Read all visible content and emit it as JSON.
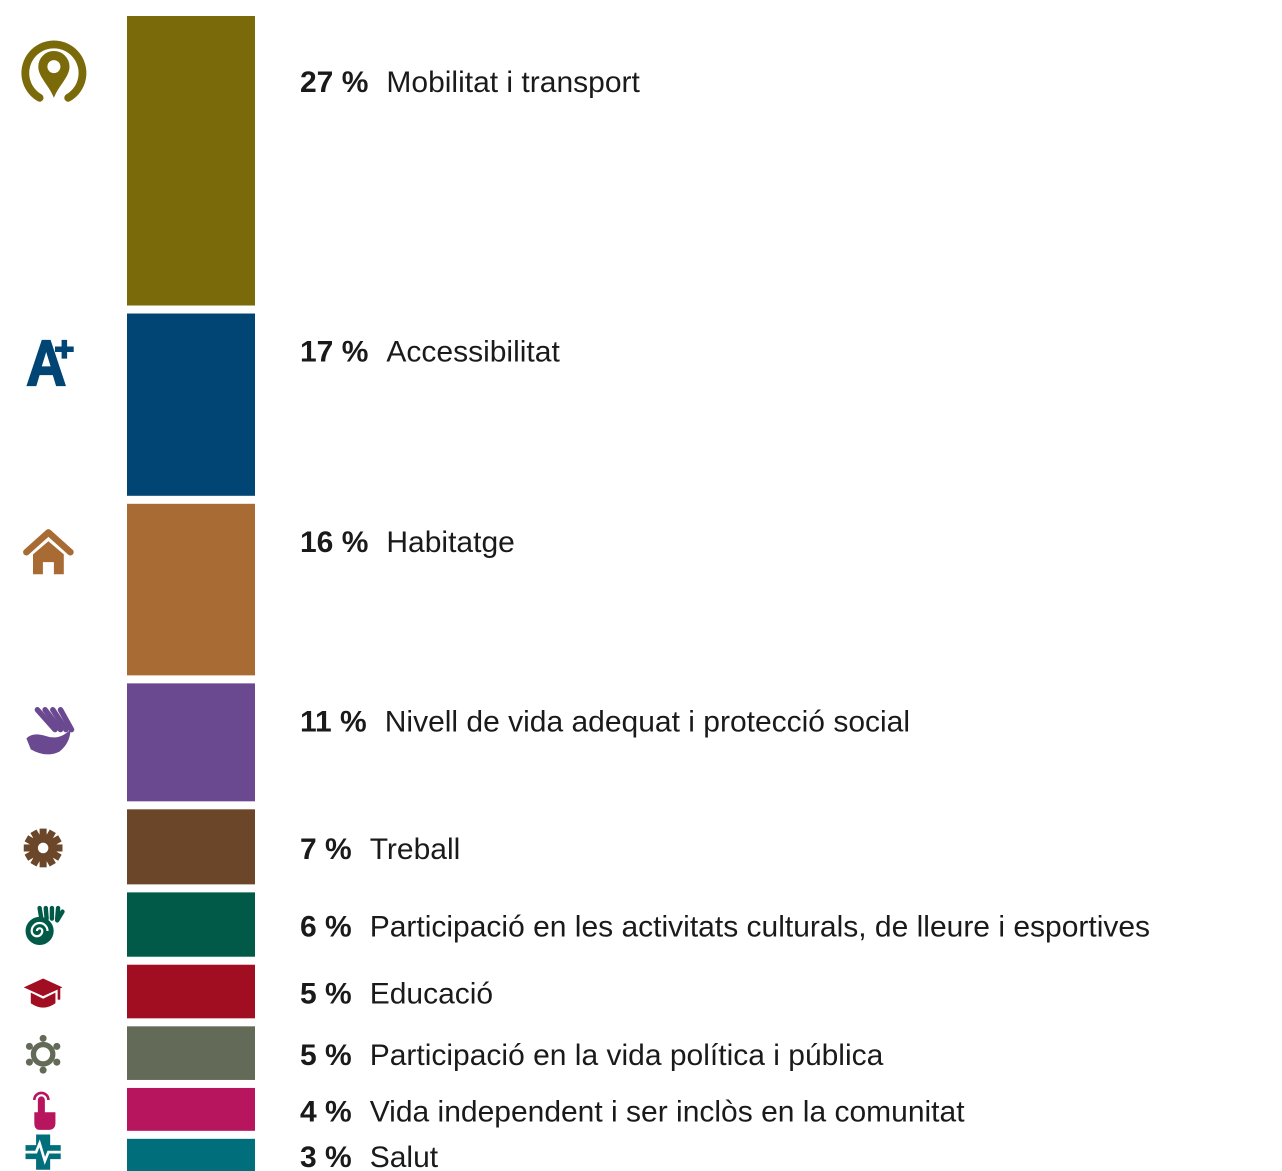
{
  "chart_data": {
    "type": "bar",
    "orientation": "stacked-vertical",
    "unit": "%",
    "grid": false,
    "legend": "none",
    "categories": [
      "Mobilitat i transport",
      "Accessibilitat",
      "Habitatge",
      "Nivell de vida adequat i protecció social",
      "Treball",
      "Participació en les activitats culturals, de lleure i esportives",
      "Educació",
      "Participació en la vida política i pública",
      "Vida independent i ser inclòs en la comunitat",
      "Salut"
    ],
    "values": [
      27,
      17,
      16,
      11,
      7,
      6,
      5,
      5,
      4,
      3
    ],
    "value_labels": [
      "27 %",
      "17 %",
      "16 %",
      "11 %",
      "7 %",
      "6 %",
      "5 %",
      "5 %",
      "4 %",
      "3 %"
    ],
    "colors": [
      "#7a6a0a",
      "#004573",
      "#a86b33",
      "#6b4991",
      "#6b4628",
      "#005a47",
      "#a20e21",
      "#636a58",
      "#b8155f",
      "#006f7b"
    ],
    "icons": [
      "location-pin-icon",
      "accessibility-a-plus-icon",
      "house-icon",
      "hands-icon",
      "gear-icon",
      "hand-spiral-icon",
      "graduation-cap-icon",
      "people-circle-icon",
      "touch-hand-icon",
      "health-cross-icon"
    ]
  }
}
